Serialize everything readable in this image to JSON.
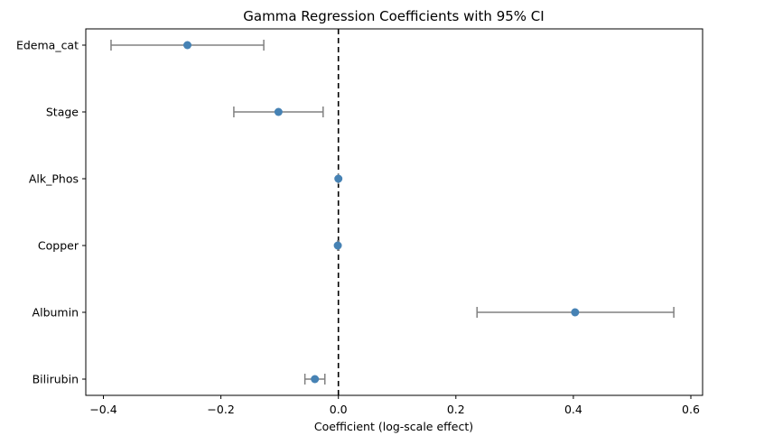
{
  "chart_data": {
    "type": "scatter",
    "title": "Gamma Regression Coefficients with 95% CI",
    "xlabel": "Coefficient (log-scale effect)",
    "ylabel": "",
    "xlim": [
      -0.43,
      0.62
    ],
    "xticks": [
      -0.4,
      -0.2,
      0.0,
      0.2,
      0.4,
      0.6
    ],
    "xtick_labels": [
      "−0.4",
      "−0.2",
      "0.0",
      "0.2",
      "0.4",
      "0.6"
    ],
    "reference_line": 0.0,
    "grid": false,
    "point_color": "#4682b4",
    "errorbar_color": "#808080",
    "refline_color": "#000000",
    "categories": [
      "Edema_cat",
      "Stage",
      "Alk_Phos",
      "Copper",
      "Albumin",
      "Bilirubin"
    ],
    "estimates": [
      -0.257,
      -0.102,
      0.0,
      -0.001,
      0.403,
      -0.04
    ],
    "ci_lower": [
      -0.387,
      -0.178,
      0.0,
      -0.001,
      0.236,
      -0.057
    ],
    "ci_upper": [
      -0.127,
      -0.026,
      0.0,
      -0.001,
      0.571,
      -0.023
    ]
  }
}
